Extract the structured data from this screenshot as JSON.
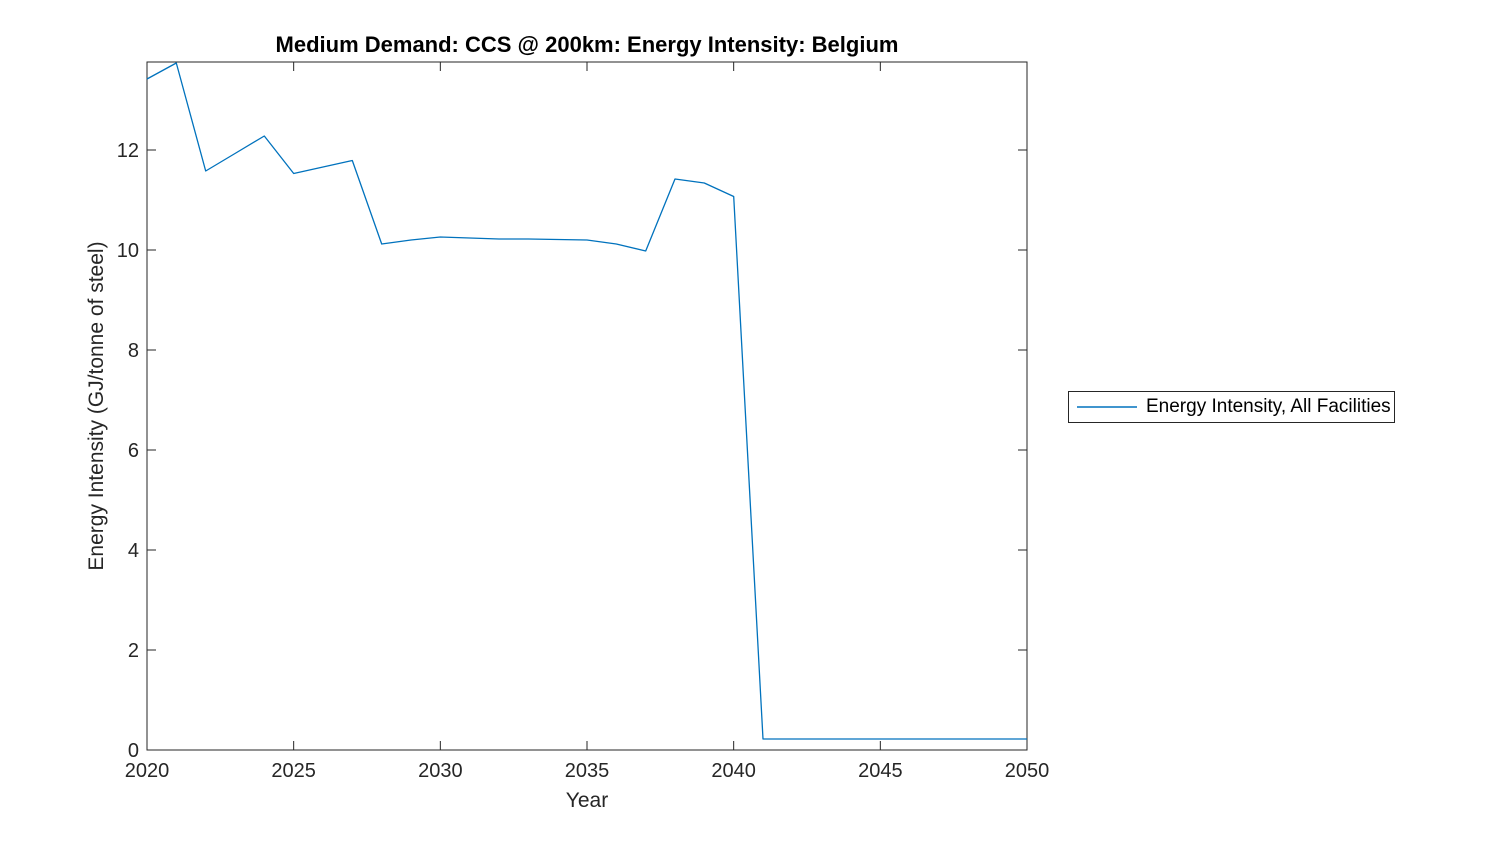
{
  "figure": {
    "background": "#ffffff",
    "axis_color": "#262626",
    "title_color": "#000000"
  },
  "chart_data": {
    "type": "line",
    "title": "Medium Demand: CCS @ 200km: Energy Intensity: Belgium",
    "xlabel": "Year",
    "ylabel": "Energy Intensity (GJ/tonne of steel)",
    "xlim": [
      2020,
      2050
    ],
    "ylim": [
      0,
      13.76
    ],
    "xticks": [
      2020,
      2025,
      2030,
      2035,
      2040,
      2045,
      2050
    ],
    "yticks": [
      0,
      2,
      4,
      6,
      8,
      10,
      12
    ],
    "grid": false,
    "box": true,
    "tick_direction": "in",
    "legend": {
      "position": "outside-right",
      "entries": [
        "Energy Intensity, All Facilities"
      ]
    },
    "series": [
      {
        "name": "Energy Intensity, All Facilities",
        "color": "#0072BD",
        "x": [
          2020,
          2021,
          2022,
          2023,
          2024,
          2025,
          2026,
          2027,
          2028,
          2029,
          2030,
          2031,
          2032,
          2033,
          2034,
          2035,
          2036,
          2037,
          2038,
          2039,
          2040,
          2041,
          2042,
          2043,
          2044,
          2045,
          2046,
          2047,
          2048,
          2049,
          2050
        ],
        "y": [
          13.42,
          13.74,
          11.58,
          11.93,
          12.28,
          11.53,
          11.66,
          11.79,
          10.12,
          10.2,
          10.26,
          10.24,
          10.22,
          10.22,
          10.21,
          10.2,
          10.12,
          9.98,
          11.42,
          11.34,
          11.07,
          0.22,
          0.22,
          0.22,
          0.22,
          0.22,
          0.22,
          0.22,
          0.22,
          0.22,
          0.22
        ]
      }
    ]
  }
}
